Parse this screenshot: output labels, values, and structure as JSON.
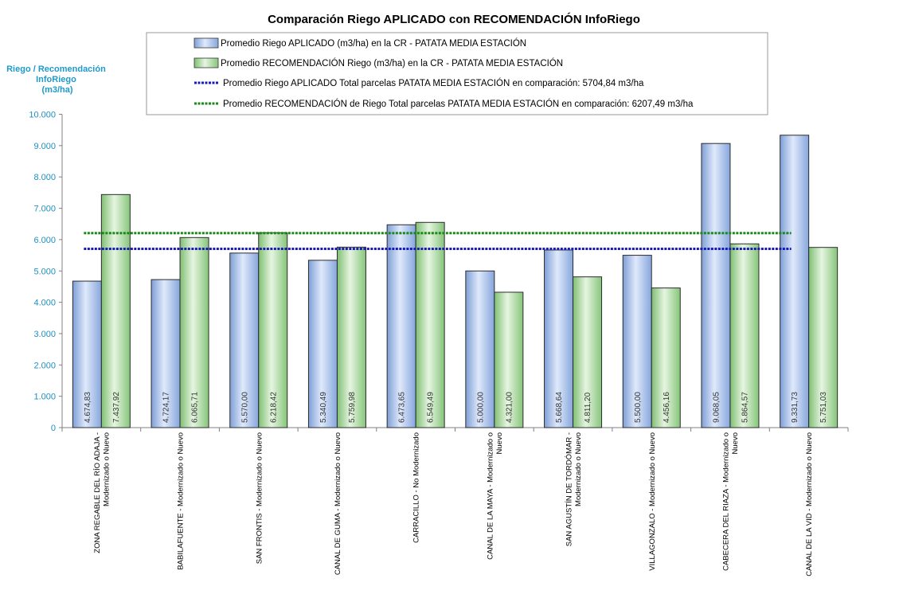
{
  "chart_data": {
    "type": "bar",
    "title": "Comparación Riego APLICADO con RECOMENDACIÓN InfoRiego",
    "ylabel_lines": [
      "Riego / Recomendación",
      "InfoRiego",
      "(m3/ha)"
    ],
    "ylim": [
      0,
      10000
    ],
    "yticks": [
      0,
      1000,
      2000,
      3000,
      4000,
      5000,
      6000,
      7000,
      8000,
      9000,
      10000
    ],
    "ytick_labels": [
      "0",
      "1.000",
      "2.000",
      "3.000",
      "4.000",
      "5.000",
      "6.000",
      "7.000",
      "8.000",
      "9.000",
      "10.000"
    ],
    "categories": [
      [
        "ZONA REGABLE DEL RÍO ADAJA -",
        "Modernizado o Nuevo"
      ],
      [
        "BABILAFUENTE - Modernizado o Nuevo"
      ],
      [
        "SAN FRONTIS - Modernizado o Nuevo"
      ],
      [
        "CANAL DE GUMA - Modernizado o Nuevo"
      ],
      [
        "CARRACILLO - No Modernizado"
      ],
      [
        "CANAL DE LA MAYA - Modernizado o",
        "Nuevo"
      ],
      [
        "SAN AGUSTÍN DE TORDÓMAR -",
        "Modernizado o Nuevo"
      ],
      [
        "VILLAGONZALO - Modernizado o Nuevo"
      ],
      [
        "CABECERA DEL RIAZA - Modernizado o",
        "Nuevo"
      ],
      [
        "CANAL DE LA VID - Modernizado o Nuevo"
      ]
    ],
    "series": [
      {
        "name": "Promedio Riego APLICADO (m3/ha) en la CR - PATATA MEDIA ESTACIÓN",
        "color": "#9ab9e8",
        "values": [
          4674.83,
          4724.17,
          5570.0,
          5340.49,
          6473.65,
          5000.0,
          5668.64,
          5500.0,
          9068.05,
          9331.73
        ],
        "labels": [
          "4.674,83",
          "4.724,17",
          "5.570,00",
          "5.340,49",
          "6.473,65",
          "5.000,00",
          "5.668,64",
          "5.500,00",
          "9.068,05",
          "9.331,73"
        ]
      },
      {
        "name": "Promedio RECOMENDACIÓN Riego (m3/ha) en la CR - PATATA MEDIA ESTACIÓN",
        "color": "#a5d49a",
        "values": [
          7437.92,
          6065.71,
          6218.42,
          5759.98,
          6549.49,
          4321.0,
          4811.2,
          4456.16,
          5864.57,
          5751.03
        ],
        "labels": [
          "7.437,92",
          "6.065,71",
          "6.218,42",
          "5.759,98",
          "6.549,49",
          "4.321,00",
          "4.811,20",
          "4.456,16",
          "5.864,57",
          "5.751,03"
        ]
      }
    ],
    "reference_lines": [
      {
        "name": "Promedio Riego APLICADO Total parcelas PATATA MEDIA ESTACIÓN en comparación: 5704,84 m3/ha",
        "value": 5704.84,
        "color": "#1a1ab8"
      },
      {
        "name": "Promedio RECOMENDACIÓN de Riego Total parcelas PATATA MEDIA ESTACIÓN en comparación: 6207,49 m3/ha",
        "value": 6207.49,
        "color": "#1a8a1a"
      }
    ],
    "legend_position": "top",
    "grid": false
  }
}
